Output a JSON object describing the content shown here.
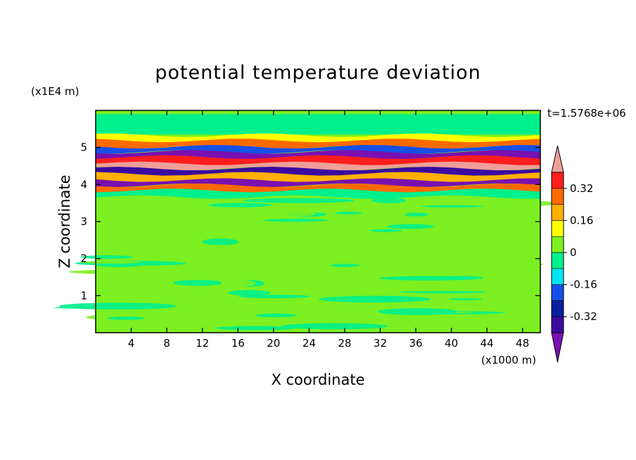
{
  "chart_data": {
    "type": "heatmap",
    "title": "potential temperature deviation",
    "time_label": "t=1.5768e+06",
    "xlabel": "X coordinate",
    "ylabel": "Z coordinate",
    "x_units": "(x1000 m)",
    "y_units": "(x1E4 m)",
    "xlim": [
      0,
      50
    ],
    "ylim": [
      0,
      6
    ],
    "x_ticks": [
      4,
      8,
      12,
      16,
      20,
      24,
      28,
      32,
      36,
      40,
      44,
      48
    ],
    "y_ticks": [
      1,
      2,
      3,
      4,
      5
    ],
    "colorbar": {
      "levels": [
        -0.48,
        -0.4,
        -0.32,
        -0.24,
        -0.16,
        -0.08,
        0,
        0.08,
        0.16,
        0.24,
        0.32,
        0.4
      ],
      "colors": [
        "#7a10b0",
        "#3a0aa0",
        "#0a1fa0",
        "#1650e8",
        "#00e6f0",
        "#00f08c",
        "#7cf020",
        "#ffff00",
        "#ffb000",
        "#ff6a00",
        "#ff1e1e",
        "#ef9f9a"
      ],
      "tick_labels": [
        "-0.32",
        "-0.16",
        "0",
        "0.16",
        "0.32"
      ],
      "tick_values": [
        -0.32,
        -0.16,
        0,
        0.16,
        0.32
      ]
    },
    "grid": false,
    "field_bands": [
      {
        "z": 5.5,
        "value": -0.04
      },
      {
        "z": 5.25,
        "value": 0.1
      },
      {
        "z": 5.1,
        "value": 0.3
      },
      {
        "z": 4.95,
        "value": -0.2
      },
      {
        "z": 4.8,
        "value": -0.42
      },
      {
        "z": 4.65,
        "value": 0.36
      },
      {
        "z": 4.5,
        "value": 0.45
      },
      {
        "z": 4.35,
        "value": -0.38
      },
      {
        "z": 4.2,
        "value": 0.2
      },
      {
        "z": 4.05,
        "value": -0.45
      },
      {
        "z": 3.9,
        "value": 0.28
      },
      {
        "z": 3.75,
        "value": -0.05
      }
    ]
  }
}
